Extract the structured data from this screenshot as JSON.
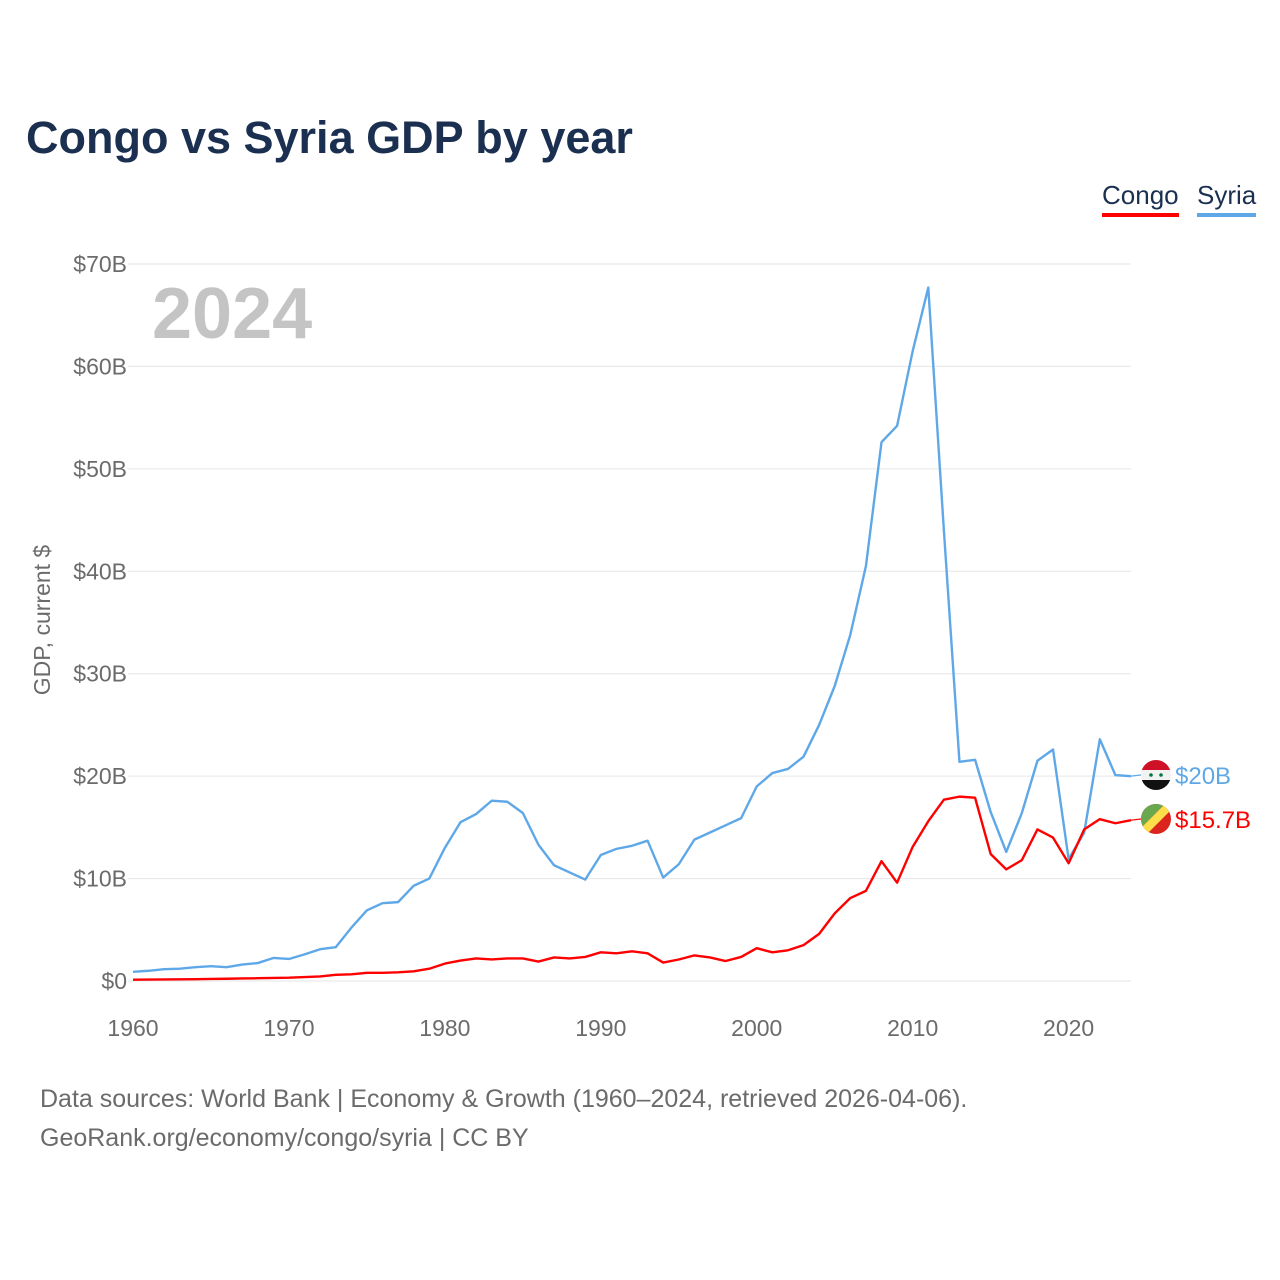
{
  "title": "Congo vs Syria GDP by year",
  "year_label": "2024",
  "footer": {
    "line1": "Data sources: World Bank | Economy & Growth (1960–2024, retrieved 2026-04-06).",
    "line2": "GeoRank.org/economy/congo/syria | CC BY"
  },
  "chart_data": {
    "type": "line",
    "title": "Congo vs Syria GDP by year",
    "xlabel": "",
    "ylabel": "GDP, current $",
    "xlim": [
      1960,
      2024
    ],
    "ylim": [
      0,
      70
    ],
    "x_ticks": [
      1960,
      1970,
      1980,
      1990,
      2000,
      2010,
      2020
    ],
    "x_tick_labels": [
      "1960",
      "1970",
      "1980",
      "1990",
      "2000",
      "2010",
      "2020"
    ],
    "y_ticks": [
      0,
      10,
      20,
      30,
      40,
      50,
      60,
      70
    ],
    "y_tick_labels": [
      "$0",
      "$10B",
      "$20B",
      "$30B",
      "$40B",
      "$50B",
      "$60B",
      "$70B"
    ],
    "grid": true,
    "legend_placement": "top-right",
    "series": [
      {
        "name": "Congo",
        "color": "#ff0000",
        "end_label": "$15.7B",
        "flag": "congo-flag",
        "values": [
          0.13,
          0.14,
          0.15,
          0.16,
          0.18,
          0.2,
          0.22,
          0.25,
          0.27,
          0.3,
          0.32,
          0.38,
          0.45,
          0.6,
          0.65,
          0.8,
          0.8,
          0.85,
          0.95,
          1.2,
          1.7,
          2.0,
          2.2,
          2.1,
          2.2,
          2.2,
          1.9,
          2.3,
          2.2,
          2.35,
          2.8,
          2.7,
          2.9,
          2.7,
          1.8,
          2.1,
          2.5,
          2.3,
          1.95,
          2.35,
          3.2,
          2.8,
          3.0,
          3.5,
          4.6,
          6.6,
          8.1,
          8.8,
          11.7,
          9.6,
          13.1,
          15.6,
          17.7,
          18.0,
          17.9,
          12.4,
          10.9,
          11.8,
          14.8,
          14.0,
          11.5,
          14.8,
          15.8,
          15.4,
          15.7
        ]
      },
      {
        "name": "Syria",
        "color": "#5fa8e8",
        "end_label": "$20B",
        "flag": "syria-flag",
        "values": [
          0.9,
          1.0,
          1.15,
          1.2,
          1.35,
          1.45,
          1.35,
          1.6,
          1.75,
          2.25,
          2.15,
          2.6,
          3.1,
          3.3,
          5.2,
          6.9,
          7.6,
          7.7,
          9.3,
          10.0,
          13.0,
          15.5,
          16.3,
          17.6,
          17.5,
          16.4,
          13.3,
          11.3,
          10.6,
          9.9,
          12.3,
          12.9,
          13.2,
          13.7,
          10.1,
          11.4,
          13.8,
          14.5,
          15.2,
          15.9,
          19.0,
          20.3,
          20.7,
          21.9,
          25.0,
          28.8,
          33.8,
          40.5,
          52.6,
          54.2,
          61.5,
          67.7,
          44.0,
          21.4,
          21.6,
          16.5,
          12.6,
          16.4,
          21.5,
          22.6,
          11.9,
          14.5,
          23.6,
          20.1,
          20.0
        ]
      }
    ]
  }
}
